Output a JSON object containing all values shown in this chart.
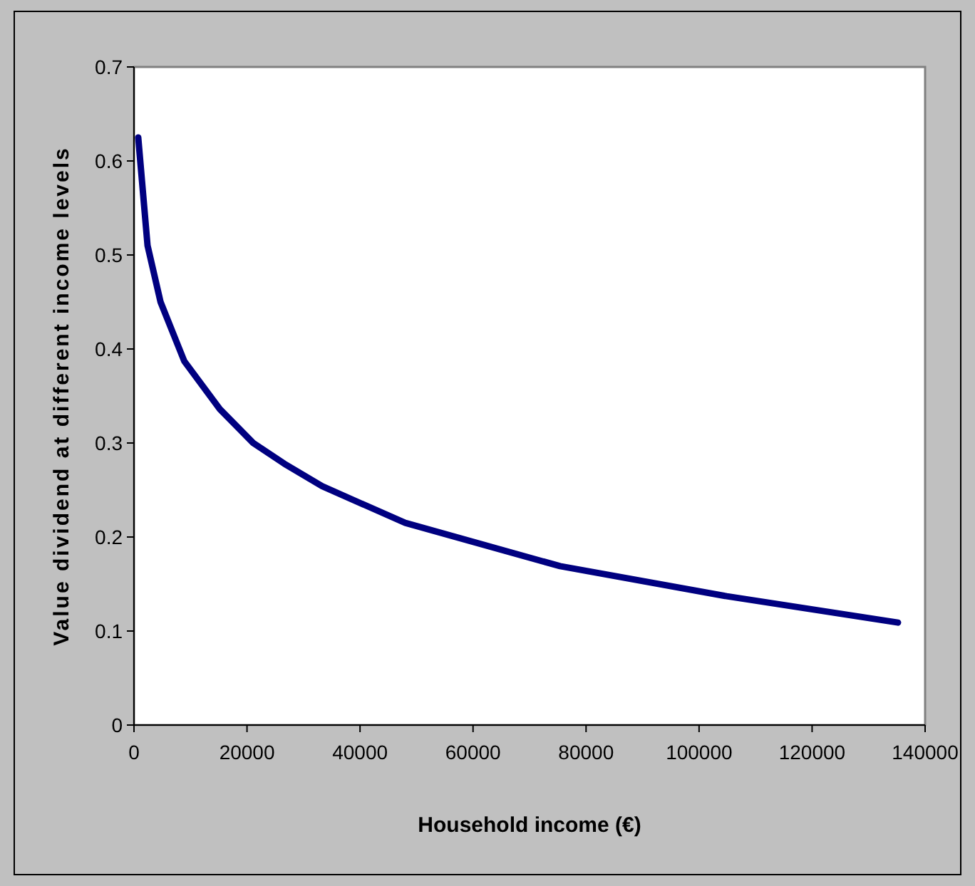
{
  "chart_data": {
    "type": "line",
    "xlabel": "Household income (€)",
    "ylabel": "Value dividend at different income levels",
    "series": [
      {
        "color": "#000080",
        "x": [
          750,
          2400,
          4700,
          8900,
          15200,
          21100,
          26600,
          33300,
          48000,
          75400,
          104900,
          135200
        ],
        "values": [
          0.625,
          0.51,
          0.45,
          0.387,
          0.336,
          0.3,
          0.278,
          0.254,
          0.215,
          0.169,
          0.137,
          0.109
        ]
      }
    ],
    "xlim": [
      0,
      140000
    ],
    "xticks": [
      0,
      20000,
      40000,
      60000,
      80000,
      100000,
      120000,
      140000
    ],
    "ylim": [
      0,
      0.7
    ],
    "yticks": [
      0,
      0.1,
      0.2,
      0.3,
      0.4,
      0.5,
      0.6,
      0.7
    ],
    "grid": false,
    "marker": "none",
    "line_style": "solid"
  }
}
